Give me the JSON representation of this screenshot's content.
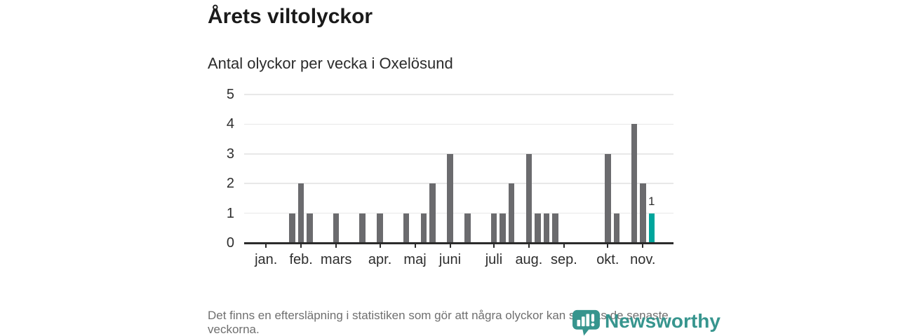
{
  "chart_data": {
    "type": "bar",
    "title": "Årets viltolyckor",
    "subtitle": "Antal olyckor per vecka i Oxelösund",
    "x_unit": "vecka",
    "first_week": 1,
    "leading_empty_slots": 2,
    "values": [
      0,
      0,
      0,
      1,
      2,
      1,
      0,
      0,
      1,
      0,
      0,
      1,
      0,
      1,
      0,
      0,
      1,
      0,
      1,
      2,
      0,
      3,
      0,
      1,
      0,
      0,
      1,
      1,
      2,
      0,
      3,
      1,
      1,
      1,
      0,
      0,
      0,
      0,
      0,
      3,
      1,
      0,
      4,
      2,
      1,
      0,
      0
    ],
    "month_ticks": [
      {
        "label": "jan.",
        "week": 1
      },
      {
        "label": "feb.",
        "week": 5
      },
      {
        "label": "mars",
        "week": 9
      },
      {
        "label": "apr.",
        "week": 14
      },
      {
        "label": "maj",
        "week": 18
      },
      {
        "label": "juni",
        "week": 22
      },
      {
        "label": "juli",
        "week": 27
      },
      {
        "label": "aug.",
        "week": 31
      },
      {
        "label": "sep.",
        "week": 35
      },
      {
        "label": "okt.",
        "week": 40
      },
      {
        "label": "nov.",
        "week": 44
      }
    ],
    "y_ticks": [
      0,
      1,
      2,
      3,
      4,
      5
    ],
    "ylim": [
      0,
      5
    ],
    "grid": "horizontal",
    "legend": "none",
    "highlight": {
      "week": 45,
      "value": 1,
      "label": "1"
    },
    "colors": {
      "bar": "#6b6b6e",
      "highlight": "#00a59c"
    }
  },
  "footer": {
    "note": "Det finns en eftersläpning i statistiken som gör att några olyckor kan saknas de senaste veckorna.",
    "brand": "Newsworthy"
  }
}
